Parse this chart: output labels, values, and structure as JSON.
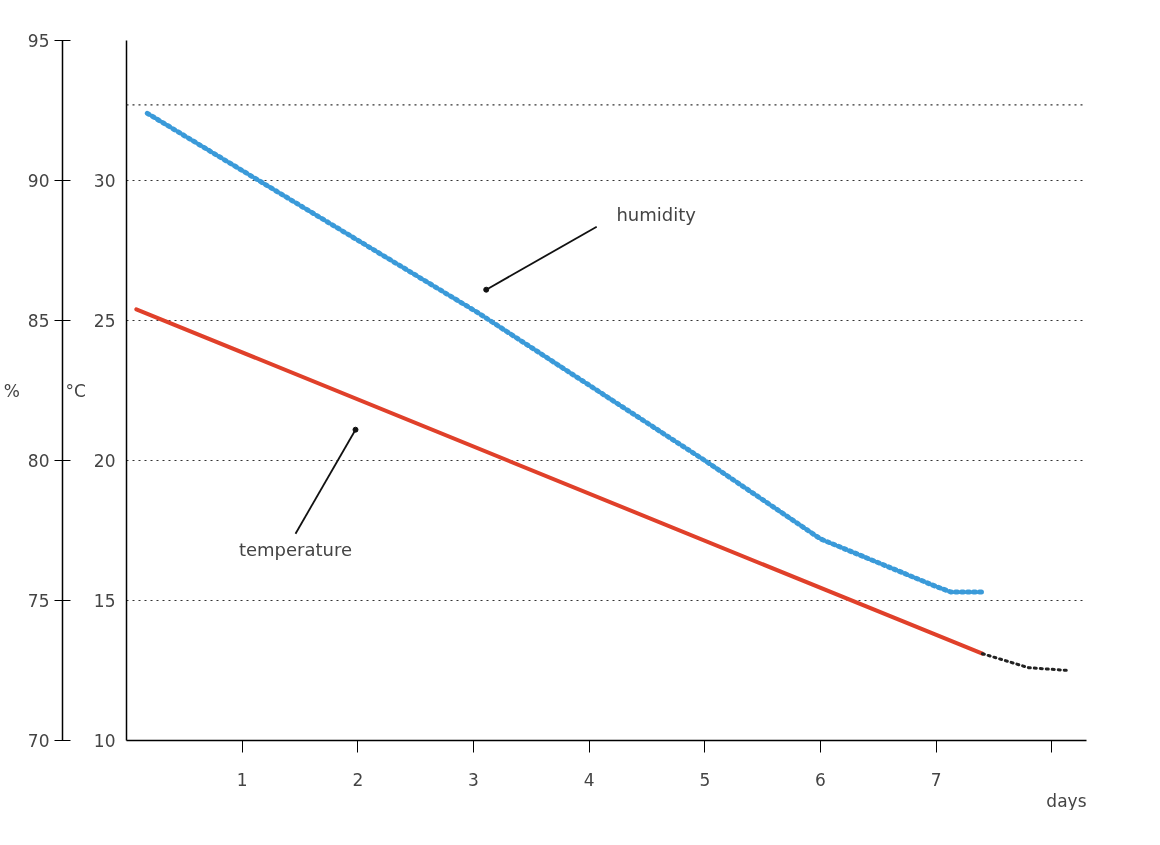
{
  "chart_data": {
    "type": "line",
    "xlabel": "days",
    "ylabel": "%",
    "y2label": "°C",
    "xlim": [
      0,
      8.3
    ],
    "xticks": [
      1,
      2,
      3,
      4,
      5,
      6,
      7,
      {
        "value": 8,
        "label": null
      }
    ],
    "ylim": [
      70,
      95
    ],
    "yticks": [
      70,
      75,
      80,
      85,
      90,
      95
    ],
    "y2lim": [
      10,
      35
    ],
    "y2ticks": [
      10,
      15,
      20,
      25,
      30
    ],
    "grid": "y",
    "marker": "none",
    "series": [
      {
        "color": "#3a9ad9",
        "line_style": "dotted",
        "x": [
          0.18,
          3.03,
          5,
          6,
          7,
          7.13,
          7.4
        ],
        "values": [
          92.4,
          85.3,
          80.0,
          77.2,
          75.5,
          75.3,
          75.3
        ]
      },
      {
        "color": "#e0402a",
        "line_style": "solid",
        "axis": "y2",
        "x": [
          0.085,
          7.4
        ],
        "values": [
          25.4,
          13.1
        ]
      },
      {
        "color": "#222222",
        "line_style": "dotted",
        "axis": "y2",
        "x": [
          7.4,
          7.8,
          8.15
        ],
        "values": [
          13.1,
          12.6,
          12.5
        ]
      }
    ],
    "ref_lines": [
      {
        "axis": "y",
        "value": 92.7,
        "label": null,
        "color": "#333333",
        "line_style": "dotted"
      }
    ],
    "annotations": [
      {
        "text": "humidity",
        "x": 3.11,
        "y": 86.1
      },
      {
        "text": "temperature",
        "x": 1.98,
        "y": 81.1
      }
    ]
  }
}
